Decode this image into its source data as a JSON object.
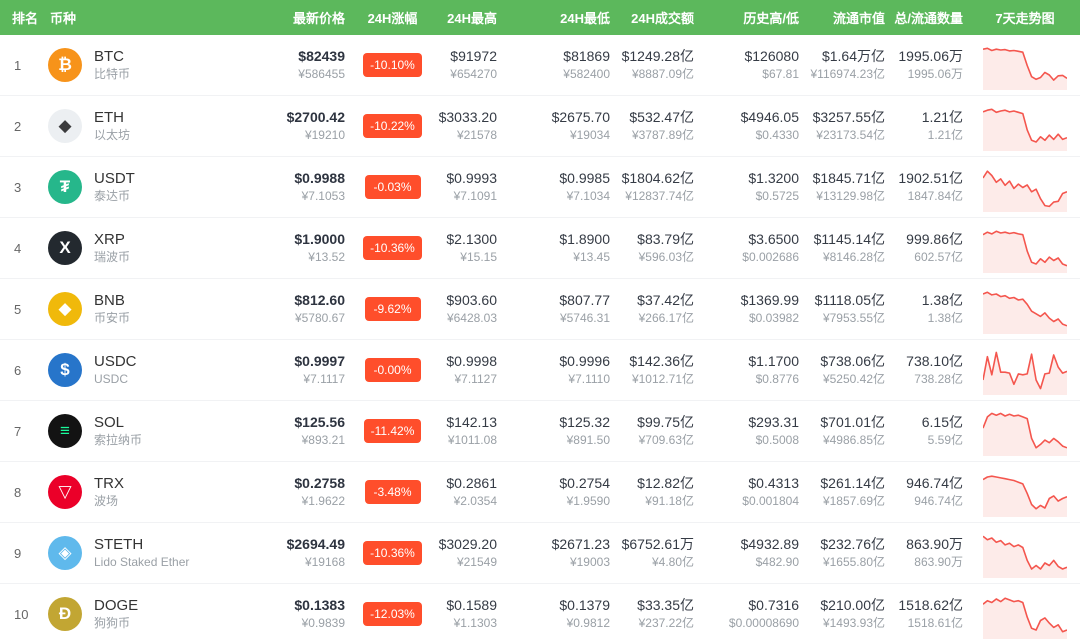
{
  "colors": {
    "header_bg": "#5cb85c",
    "header_text": "#ffffff",
    "badge_bg": "#ff4e2b",
    "spark_line": "#f4564e",
    "spark_fill": "#fdebe9"
  },
  "headers": [
    "排名",
    "币种",
    "最新价格",
    "24H涨幅",
    "24H最高",
    "24H最低",
    "24H成交额",
    "历史高/低",
    "流通市值",
    "总/流通数量",
    "7天走势图"
  ],
  "rows": [
    {
      "rank": "1",
      "symbol": "BTC",
      "name": "比特币",
      "icon": {
        "glyph": "₿",
        "bg": "#f7931a",
        "fg": "#ffffff"
      },
      "price": {
        "usd": "$82439",
        "cny": "¥586455"
      },
      "change": "-10.10%",
      "high": {
        "usd": "$91972",
        "cny": "¥654270"
      },
      "low": {
        "usd": "$81869",
        "cny": "¥582400"
      },
      "volume": {
        "usd": "$1249.28亿",
        "cny": "¥8887.09亿"
      },
      "hist": {
        "high": "$126080",
        "low": "$67.81"
      },
      "mcap": {
        "usd": "$1.64万亿",
        "cny": "¥116974.23亿"
      },
      "supply": {
        "total": "1995.06万",
        "circulating": "1995.06万"
      },
      "spark": [
        88,
        90,
        85,
        88,
        86,
        87,
        84,
        85,
        83,
        81,
        50,
        24,
        18,
        22,
        34,
        28,
        16,
        26,
        27,
        20
      ]
    },
    {
      "rank": "2",
      "symbol": "ETH",
      "name": "以太坊",
      "icon": {
        "glyph": "◆",
        "bg": "#eceff2",
        "fg": "#3b3b3d"
      },
      "price": {
        "usd": "$2700.42",
        "cny": "¥19210"
      },
      "change": "-10.22%",
      "high": {
        "usd": "$3033.20",
        "cny": "¥21578"
      },
      "low": {
        "usd": "$2675.70",
        "cny": "¥19034"
      },
      "volume": {
        "usd": "$532.47亿",
        "cny": "¥3787.89亿"
      },
      "hist": {
        "high": "$4946.05",
        "low": "$0.4330"
      },
      "mcap": {
        "usd": "$3257.55亿",
        "cny": "¥23173.54亿"
      },
      "supply": {
        "total": "1.21亿",
        "circulating": "1.21亿"
      },
      "spark": [
        84,
        88,
        90,
        83,
        86,
        88,
        84,
        86,
        83,
        80,
        42,
        18,
        14,
        26,
        18,
        30,
        20,
        32,
        20,
        24
      ]
    },
    {
      "rank": "3",
      "symbol": "USDT",
      "name": "泰达币",
      "icon": {
        "glyph": "₮",
        "bg": "#26b78b",
        "fg": "#ffffff"
      },
      "price": {
        "usd": "$0.9988",
        "cny": "¥7.1053"
      },
      "change": "-0.03%",
      "high": {
        "usd": "$0.9993",
        "cny": "¥7.1091"
      },
      "low": {
        "usd": "$0.9985",
        "cny": "¥7.1034"
      },
      "volume": {
        "usd": "$1804.62亿",
        "cny": "¥12837.74亿"
      },
      "hist": {
        "high": "$1.3200",
        "low": "$0.5725"
      },
      "mcap": {
        "usd": "$1845.71亿",
        "cny": "¥13129.98亿"
      },
      "supply": {
        "total": "1902.51亿",
        "circulating": "1847.84亿"
      },
      "spark": [
        72,
        88,
        78,
        62,
        70,
        55,
        65,
        48,
        58,
        50,
        56,
        40,
        46,
        24,
        8,
        6,
        16,
        18,
        36,
        40
      ]
    },
    {
      "rank": "4",
      "symbol": "XRP",
      "name": "瑞波币",
      "icon": {
        "glyph": "X",
        "bg": "#23292f",
        "fg": "#ffffff"
      },
      "price": {
        "usd": "$1.9000",
        "cny": "¥13.52"
      },
      "change": "-10.36%",
      "high": {
        "usd": "$2.1300",
        "cny": "¥15.15"
      },
      "low": {
        "usd": "$1.8900",
        "cny": "¥13.45"
      },
      "volume": {
        "usd": "$83.79亿",
        "cny": "¥596.03亿"
      },
      "hist": {
        "high": "$3.6500",
        "low": "$0.002686"
      },
      "mcap": {
        "usd": "$1145.14亿",
        "cny": "¥8146.28亿"
      },
      "supply": {
        "total": "999.86亿",
        "circulating": "602.57亿"
      },
      "spark": [
        82,
        88,
        84,
        90,
        86,
        88,
        85,
        87,
        84,
        82,
        44,
        18,
        14,
        26,
        18,
        30,
        22,
        28,
        14,
        10
      ]
    },
    {
      "rank": "5",
      "symbol": "BNB",
      "name": "币安币",
      "icon": {
        "glyph": "◆",
        "bg": "#f0b90b",
        "fg": "#ffffff"
      },
      "price": {
        "usd": "$812.60",
        "cny": "¥5780.67"
      },
      "change": "-9.62%",
      "high": {
        "usd": "$903.60",
        "cny": "¥6428.03"
      },
      "low": {
        "usd": "$807.77",
        "cny": "¥5746.31"
      },
      "volume": {
        "usd": "$37.42亿",
        "cny": "¥266.17亿"
      },
      "hist": {
        "high": "$1369.99",
        "low": "$0.03982"
      },
      "mcap": {
        "usd": "$1118.05亿",
        "cny": "¥7953.55亿"
      },
      "supply": {
        "total": "1.38亿",
        "circulating": "1.38亿"
      },
      "spark": [
        86,
        90,
        84,
        86,
        80,
        82,
        76,
        78,
        72,
        74,
        62,
        46,
        40,
        34,
        42,
        30,
        22,
        28,
        16,
        12
      ]
    },
    {
      "rank": "6",
      "symbol": "USDC",
      "name": "USDC",
      "icon": {
        "glyph": "$",
        "bg": "#2775ca",
        "fg": "#ffffff"
      },
      "price": {
        "usd": "$0.9997",
        "cny": "¥7.1117"
      },
      "change": "-0.00%",
      "high": {
        "usd": "$0.9998",
        "cny": "¥7.1127"
      },
      "low": {
        "usd": "$0.9996",
        "cny": "¥7.1110"
      },
      "volume": {
        "usd": "$142.36亿",
        "cny": "¥1012.71亿"
      },
      "hist": {
        "high": "$1.1700",
        "low": "$0.8776"
      },
      "mcap": {
        "usd": "$738.06亿",
        "cny": "¥5250.42亿"
      },
      "supply": {
        "total": "738.10亿",
        "circulating": "738.28亿"
      },
      "spark": [
        28,
        82,
        40,
        92,
        46,
        46,
        44,
        18,
        42,
        40,
        42,
        88,
        28,
        8,
        42,
        44,
        86,
        58,
        44,
        48
      ]
    },
    {
      "rank": "7",
      "symbol": "SOL",
      "name": "索拉纳币",
      "icon": {
        "glyph": "≡",
        "bg": "#131313",
        "fg": "#19fb9b"
      },
      "price": {
        "usd": "$125.56",
        "cny": "¥893.21"
      },
      "change": "-11.42%",
      "high": {
        "usd": "$142.13",
        "cny": "¥1011.08"
      },
      "low": {
        "usd": "$125.32",
        "cny": "¥891.50"
      },
      "volume": {
        "usd": "$99.75亿",
        "cny": "¥709.63亿"
      },
      "hist": {
        "high": "$293.31",
        "low": "$0.5008"
      },
      "mcap": {
        "usd": "$701.01亿",
        "cny": "¥4986.85亿"
      },
      "supply": {
        "total": "6.15亿",
        "circulating": "5.59亿"
      },
      "spark": [
        58,
        84,
        92,
        88,
        92,
        86,
        90,
        86,
        88,
        84,
        80,
        34,
        12,
        20,
        30,
        24,
        34,
        26,
        16,
        12
      ]
    },
    {
      "rank": "8",
      "symbol": "TRX",
      "name": "波场",
      "icon": {
        "glyph": "▽",
        "bg": "#eb0029",
        "fg": "#ffffff"
      },
      "price": {
        "usd": "$0.2758",
        "cny": "¥1.9622"
      },
      "change": "-3.48%",
      "high": {
        "usd": "$0.2861",
        "cny": "¥2.0354"
      },
      "low": {
        "usd": "$0.2754",
        "cny": "¥1.9590"
      },
      "volume": {
        "usd": "$12.82亿",
        "cny": "¥91.18亿"
      },
      "hist": {
        "high": "$0.4313",
        "low": "$0.001804"
      },
      "mcap": {
        "usd": "$261.14亿",
        "cny": "¥1857.69亿"
      },
      "supply": {
        "total": "946.74亿",
        "circulating": "946.74亿"
      },
      "spark": [
        80,
        86,
        88,
        86,
        84,
        82,
        80,
        78,
        74,
        70,
        48,
        22,
        12,
        20,
        14,
        36,
        42,
        30,
        36,
        40
      ]
    },
    {
      "rank": "9",
      "symbol": "STETH",
      "name": "Lido Staked Ether",
      "icon": {
        "glyph": "◈",
        "bg": "#5fb9ec",
        "fg": "#ffffff"
      },
      "price": {
        "usd": "$2694.49",
        "cny": "¥19168"
      },
      "change": "-10.36%",
      "high": {
        "usd": "$3029.20",
        "cny": "¥21549"
      },
      "low": {
        "usd": "$2671.23",
        "cny": "¥19003"
      },
      "volume": {
        "usd": "$6752.61万",
        "cny": "¥4.80亿"
      },
      "hist": {
        "high": "$4932.89",
        "low": "$482.90"
      },
      "mcap": {
        "usd": "$232.76亿",
        "cny": "¥1655.80亿"
      },
      "supply": {
        "total": "863.90万",
        "circulating": "863.90万"
      },
      "spark": [
        90,
        82,
        86,
        76,
        80,
        70,
        74,
        66,
        70,
        64,
        34,
        14,
        22,
        14,
        28,
        22,
        34,
        20,
        14,
        18
      ]
    },
    {
      "rank": "10",
      "symbol": "DOGE",
      "name": "狗狗币",
      "icon": {
        "glyph": "Ð",
        "bg": "#c2a633",
        "fg": "#ffffff"
      },
      "price": {
        "usd": "$0.1383",
        "cny": "¥0.9839"
      },
      "change": "-12.03%",
      "high": {
        "usd": "$0.1589",
        "cny": "¥1.1303"
      },
      "low": {
        "usd": "$0.1379",
        "cny": "¥0.9812"
      },
      "volume": {
        "usd": "$33.35亿",
        "cny": "¥237.22亿"
      },
      "hist": {
        "high": "$0.7316",
        "low": "$0.00008690"
      },
      "mcap": {
        "usd": "$210.00亿",
        "cny": "¥1493.93亿"
      },
      "supply": {
        "total": "1518.62亿",
        "circulating": "1518.61亿"
      },
      "spark": [
        74,
        82,
        78,
        86,
        80,
        88,
        84,
        80,
        82,
        78,
        44,
        18,
        14,
        36,
        42,
        30,
        20,
        26,
        10,
        14
      ]
    }
  ]
}
